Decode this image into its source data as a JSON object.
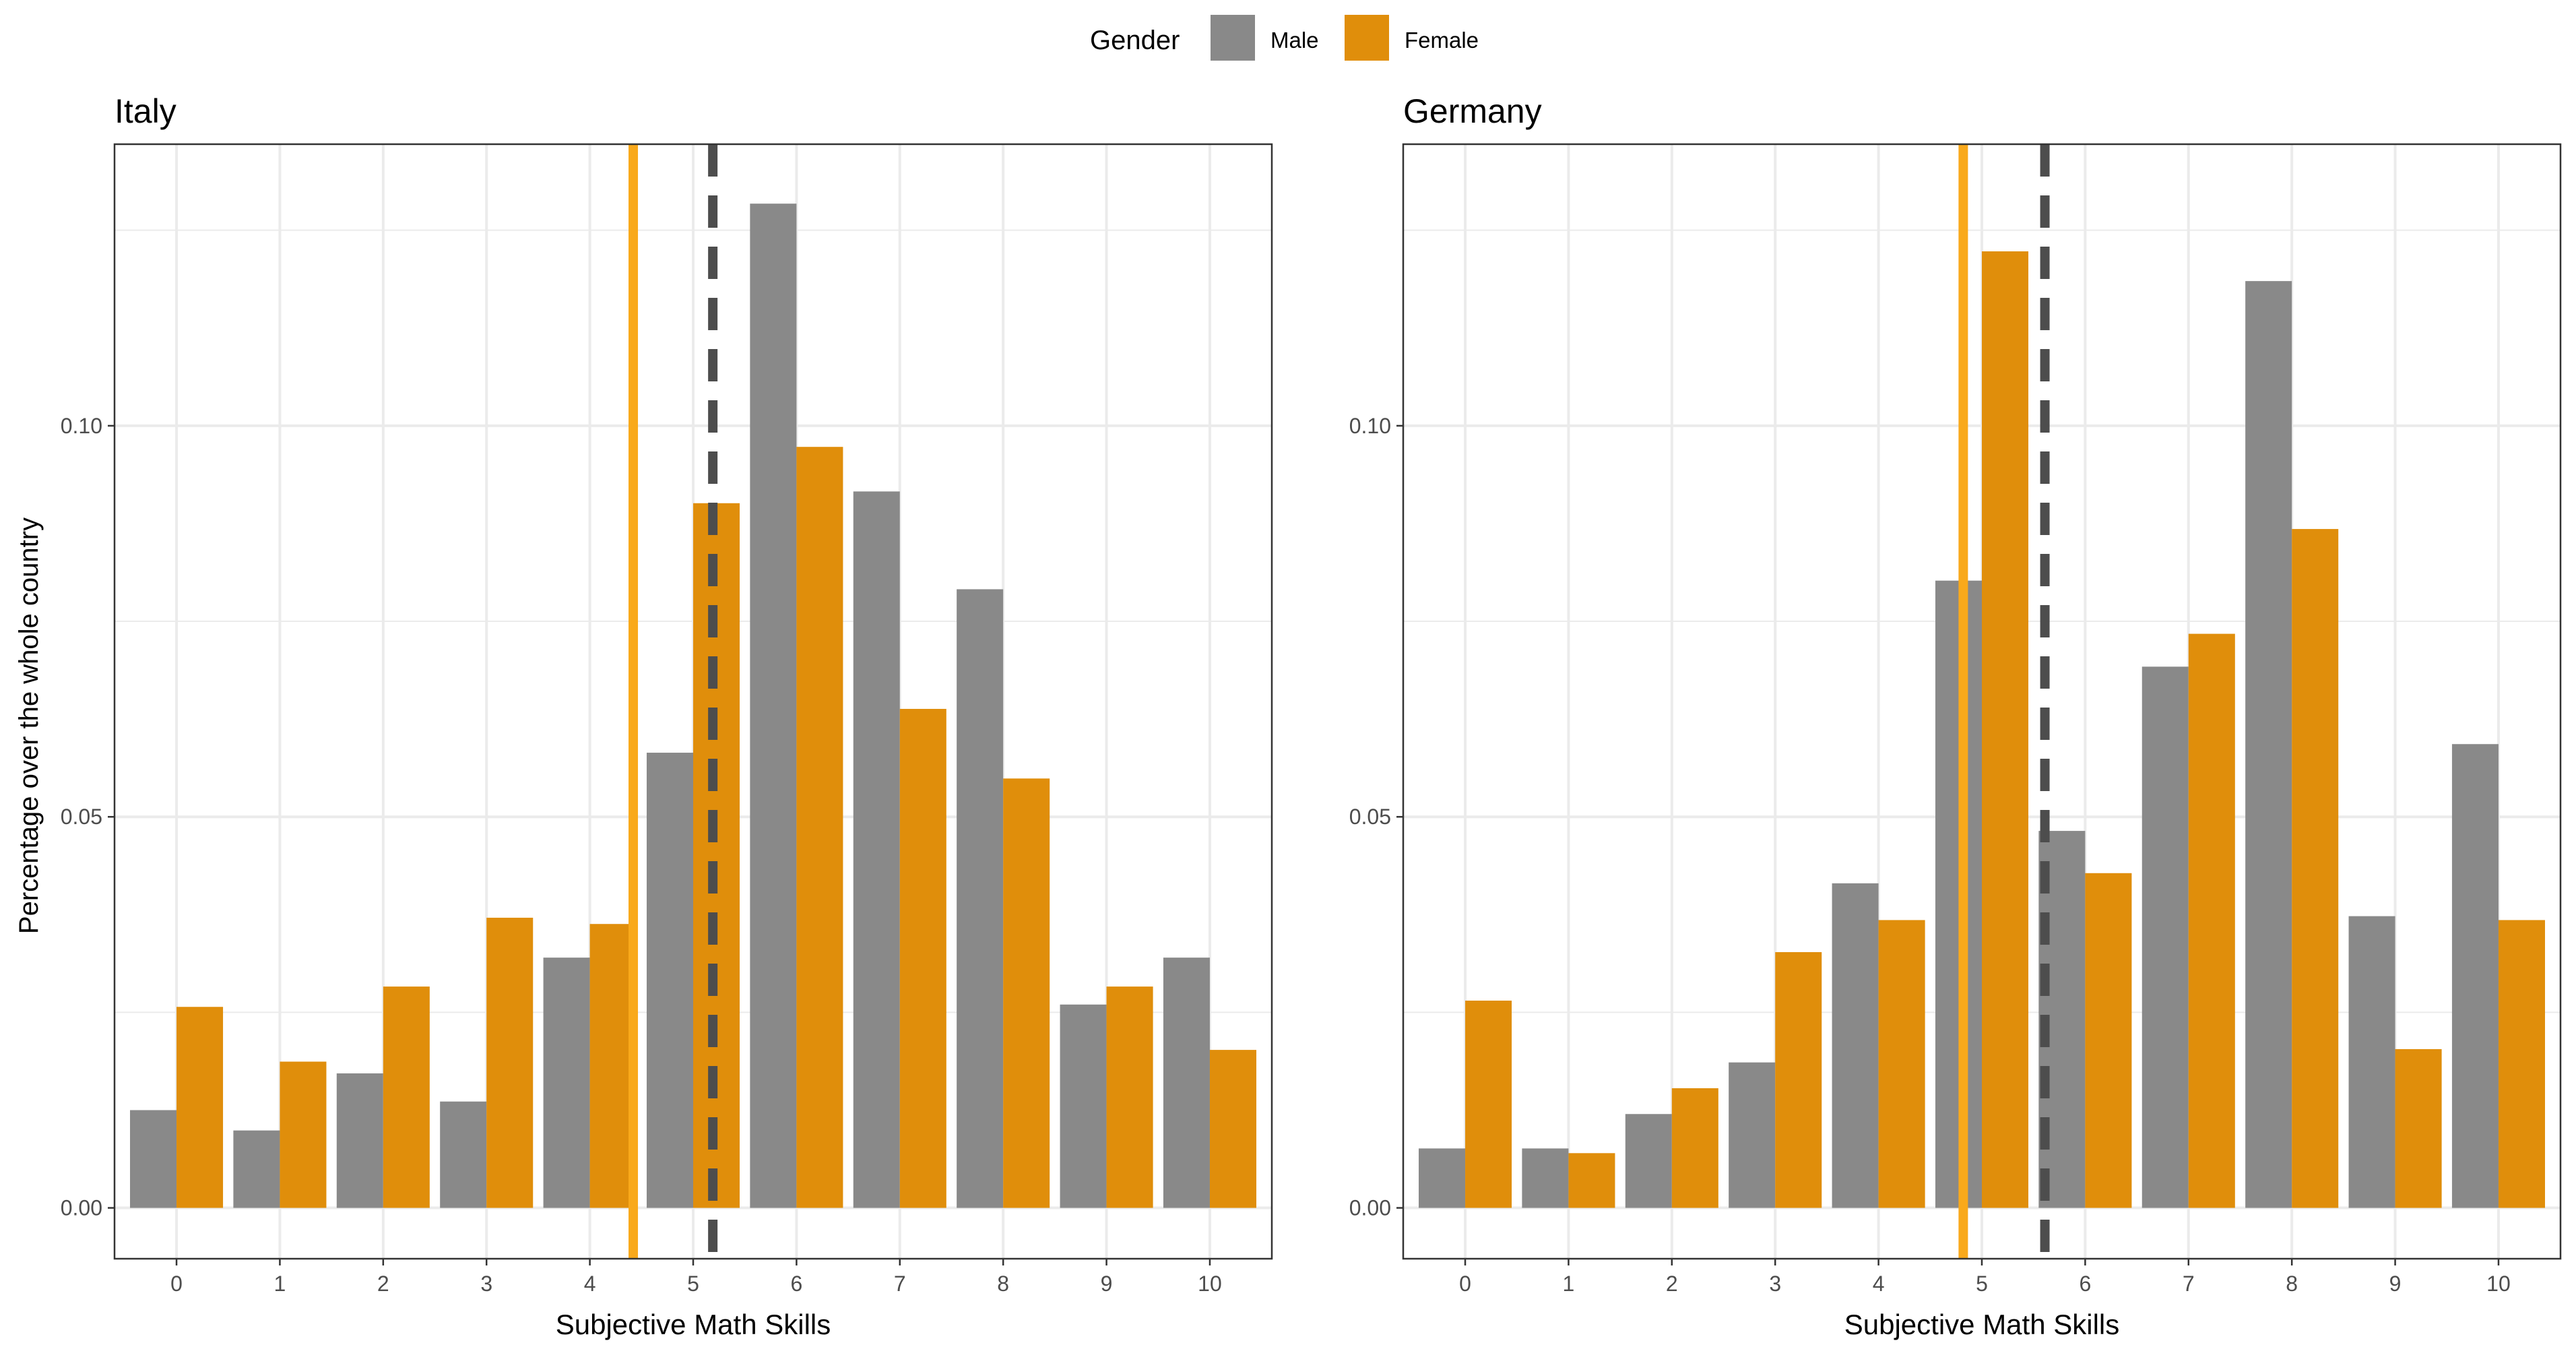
{
  "legend": {
    "title": "Gender",
    "items": [
      {
        "label": "Male",
        "color": "#898989"
      },
      {
        "label": "Female",
        "color": "#E08E0B"
      }
    ]
  },
  "y_axis_label": "Percentage over the whole country",
  "colors": {
    "male": "#898989",
    "female": "#E08E0B",
    "female_mean_line": "#F9A91B",
    "male_mean_line": "#4D4D4D",
    "grid": "#EBEBEB",
    "panel_border": "#333333"
  },
  "chart_data": [
    {
      "type": "bar",
      "title": "Italy",
      "xlabel": "Subjective Math Skills",
      "ylabel": "Percentage over the whole country",
      "categories": [
        "0",
        "1",
        "2",
        "3",
        "4",
        "5",
        "6",
        "7",
        "8",
        "9",
        "10"
      ],
      "series": [
        {
          "name": "Male",
          "values": [
            0.0125,
            0.0099,
            0.0172,
            0.0136,
            0.032,
            0.0582,
            0.1284,
            0.0916,
            0.0791,
            0.026,
            0.032
          ]
        },
        {
          "name": "Female",
          "values": [
            0.0257,
            0.0187,
            0.0283,
            0.0371,
            0.0363,
            0.0901,
            0.0973,
            0.0638,
            0.0549,
            0.0283,
            0.0202
          ]
        }
      ],
      "mean_lines": {
        "female": 4.42,
        "male": 5.19
      },
      "ylim": [
        -0.0065,
        0.136
      ],
      "yticks": [
        0.0,
        0.05,
        0.1
      ],
      "ytick_labels": [
        "0.00",
        "0.05",
        "0.10"
      ],
      "grid": true
    },
    {
      "type": "bar",
      "title": "Germany",
      "xlabel": "Subjective Math Skills",
      "ylabel": "",
      "categories": [
        "0",
        "1",
        "2",
        "3",
        "4",
        "5",
        "6",
        "7",
        "8",
        "9",
        "10"
      ],
      "series": [
        {
          "name": "Male",
          "values": [
            0.0076,
            0.0076,
            0.012,
            0.0186,
            0.0415,
            0.0802,
            0.0482,
            0.0692,
            0.1185,
            0.0373,
            0.0593
          ]
        },
        {
          "name": "Female",
          "values": [
            0.0265,
            0.007,
            0.0153,
            0.0327,
            0.0368,
            0.1223,
            0.0428,
            0.0734,
            0.0868,
            0.0203,
            0.0368
          ]
        }
      ],
      "mean_lines": {
        "female": 4.82,
        "male": 5.61
      },
      "ylim": [
        -0.0065,
        0.136
      ],
      "yticks": [
        0.0,
        0.05,
        0.1
      ],
      "ytick_labels": [
        "0.00",
        "0.05",
        "0.10"
      ],
      "grid": true
    }
  ]
}
